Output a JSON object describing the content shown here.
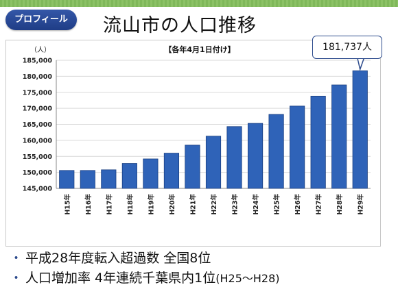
{
  "header": {
    "badge_label": "プロフィール",
    "title": "流山市の人口推移"
  },
  "callout": {
    "text": "181,737人"
  },
  "bullets": [
    {
      "text": "平成28年度転入超過数 全国8位"
    },
    {
      "text_main": "人口増加率 4年連続千葉県内1位",
      "text_tail": "(H25～H28)"
    }
  ],
  "colors": {
    "bar": "#2f63b8",
    "bar_edge": "#1a3f80",
    "badge": "#2b4a8c"
  },
  "chart_data": {
    "type": "bar",
    "title": "【各年4月1日付け】",
    "ylabel": "（人）",
    "xlabel": "",
    "categories": [
      "H15年",
      "H16年",
      "H17年",
      "H18年",
      "H19年",
      "H20年",
      "H21年",
      "H22年",
      "H23年",
      "H24年",
      "H25年",
      "H26年",
      "H27年",
      "H28年",
      "H29年"
    ],
    "values": [
      150600,
      150600,
      150800,
      152800,
      154200,
      156000,
      158500,
      161300,
      164300,
      165300,
      168100,
      170700,
      173800,
      177300,
      181737
    ],
    "ylim": [
      145000,
      185000
    ],
    "yticks": [
      145000,
      150000,
      155000,
      160000,
      165000,
      170000,
      175000,
      180000,
      185000
    ],
    "ytick_labels": [
      "145,000",
      "150,000",
      "155,000",
      "160,000",
      "165,000",
      "170,000",
      "175,000",
      "180,000",
      "185,000"
    ],
    "grid": true,
    "legend": "none"
  }
}
